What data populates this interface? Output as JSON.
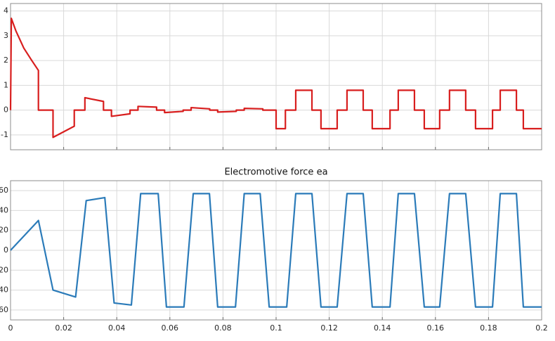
{
  "chart_data": [
    {
      "type": "line",
      "color": "#d81e1e",
      "x": [
        0,
        0.0003,
        0.002,
        0.005,
        0.008,
        0.0105,
        0.0105,
        0.016,
        0.016,
        0.024,
        0.024,
        0.028,
        0.028,
        0.035,
        0.035,
        0.038,
        0.038,
        0.045,
        0.045,
        0.048,
        0.048,
        0.055,
        0.055,
        0.058,
        0.058,
        0.065,
        0.065,
        0.068,
        0.068,
        0.075,
        0.075,
        0.078,
        0.078,
        0.085,
        0.085,
        0.088,
        0.088,
        0.095,
        0.095,
        0.1,
        0.1,
        0.1035,
        0.1035,
        0.1074,
        0.1074,
        0.1135,
        0.1135,
        0.1169,
        0.1169,
        0.123,
        0.123,
        0.1267,
        0.1267,
        0.1328,
        0.1328,
        0.1362,
        0.1362,
        0.1429,
        0.1429,
        0.146,
        0.146,
        0.1521,
        0.1521,
        0.1558,
        0.1558,
        0.1616,
        0.1616,
        0.1653,
        0.1653,
        0.1714,
        0.1714,
        0.1751,
        0.1751,
        0.1815,
        0.1815,
        0.1844,
        0.1844,
        0.1905,
        0.1905,
        0.1931,
        0.1931,
        0.2
      ],
      "values": [
        0,
        3.7,
        3.2,
        2.5,
        2.0,
        1.6,
        0,
        0,
        -1.1,
        -0.65,
        0,
        0,
        0.5,
        0.35,
        0,
        0,
        -0.25,
        -0.15,
        0,
        0,
        0.15,
        0.12,
        0,
        0,
        -0.1,
        -0.05,
        0,
        0,
        0.1,
        0.05,
        0,
        0,
        -0.08,
        -0.05,
        0,
        0,
        0.07,
        0.05,
        0,
        0,
        -0.75,
        -0.75,
        0,
        0,
        0.8,
        0.8,
        0,
        0,
        -0.75,
        -0.75,
        0,
        0,
        0.8,
        0.8,
        0,
        0,
        -0.75,
        -0.75,
        0,
        0,
        0.8,
        0.8,
        0,
        0,
        -0.75,
        -0.75,
        0,
        0,
        0.8,
        0.8,
        0,
        0,
        -0.75,
        -0.75,
        0,
        0,
        0.8,
        0.8,
        0,
        0,
        -0.75,
        -0.75
      ],
      "xlim": [
        0,
        0.2
      ],
      "xticks": [
        0,
        0.02,
        0.04,
        0.06,
        0.08,
        0.1,
        0.12,
        0.14,
        0.16,
        0.18,
        0.2
      ],
      "show_xtick_labels": false,
      "ylim": [
        -1.6,
        4.3
      ],
      "yticks": [
        -1,
        0,
        1,
        2,
        3,
        4
      ],
      "grid": true
    },
    {
      "type": "line",
      "title": "Electromotive force ea",
      "color": "#2b7bb9",
      "x": [
        0,
        0.0105,
        0.016,
        0.0245,
        0.0285,
        0.0355,
        0.039,
        0.0455,
        0.049,
        0.0556,
        0.0587,
        0.0653,
        0.0688,
        0.0749,
        0.078,
        0.0847,
        0.088,
        0.094,
        0.0974,
        0.104,
        0.1074,
        0.1135,
        0.1169,
        0.123,
        0.1267,
        0.1328,
        0.1362,
        0.1429,
        0.146,
        0.1521,
        0.1558,
        0.1616,
        0.1653,
        0.1714,
        0.1751,
        0.1815,
        0.1844,
        0.1905,
        0.1931,
        0.2
      ],
      "values": [
        0,
        30,
        -40,
        -47,
        50,
        53,
        -53,
        -55,
        57,
        57,
        -57,
        -57,
        57,
        57,
        -57,
        -57,
        57,
        57,
        -57,
        -57,
        57,
        57,
        -57,
        -57,
        57,
        57,
        -57,
        -57,
        57,
        57,
        -57,
        -57,
        57,
        57,
        -57,
        -57,
        57,
        57,
        -57,
        -57
      ],
      "xlim": [
        0,
        0.2
      ],
      "xticks": [
        0,
        0.02,
        0.04,
        0.06,
        0.08,
        0.1,
        0.12,
        0.14,
        0.16,
        0.18,
        0.2
      ],
      "show_xtick_labels": true,
      "ylim": [
        -70,
        70
      ],
      "yticks": [
        {
          "value": -60,
          "label": "60"
        },
        {
          "value": -40,
          "label": "40"
        },
        {
          "value": -20,
          "label": "20"
        },
        0,
        20,
        40,
        60
      ],
      "grid": true
    }
  ]
}
